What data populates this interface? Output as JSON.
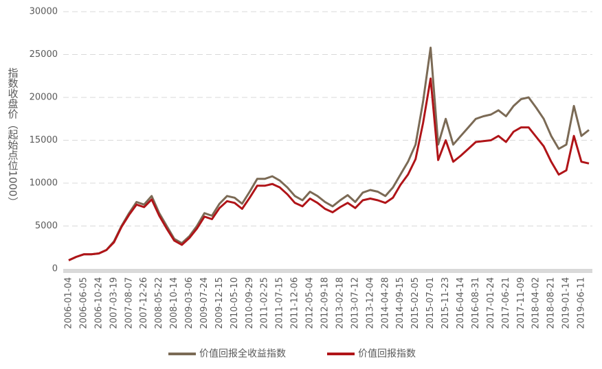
{
  "chart_data": {
    "type": "line",
    "y_label": "指数收盘价（起始点位1000）",
    "categories": [
      "2006-01-04",
      null,
      "2006-06-05",
      null,
      "2006-10-24",
      null,
      "2007-03-19",
      null,
      "2007-08-07",
      null,
      "2007-12-26",
      null,
      "2008-05-22",
      null,
      "2008-10-14",
      null,
      "2009-03-06",
      null,
      "2009-07-24",
      null,
      "2009-12-15",
      null,
      "2010-05-10",
      null,
      "2010-09-29",
      null,
      "2011-02-25",
      null,
      "2011-07-15",
      null,
      "2011-12-06",
      null,
      "2012-05-04",
      null,
      "2012-09-18",
      null,
      "2013-02-18",
      null,
      "2013-07-12",
      null,
      "2013-12-04",
      null,
      "2014-04-28",
      null,
      "2014-09-15",
      null,
      "2015-02-05",
      null,
      "2015-07-01",
      null,
      "2015-11-23",
      null,
      "2016-04-14",
      null,
      "2016-08-31",
      null,
      "2017-01-24",
      null,
      "2017-06-21",
      null,
      "2017-11-09",
      null,
      "2018-04-02",
      null,
      "2018-08-21",
      null,
      "2019-01-14",
      null,
      "2019-06-11",
      null
    ],
    "series": [
      {
        "name": "价值回报全收益指数",
        "color": "#7b6a55",
        "values": [
          1000,
          1400,
          1700,
          1700,
          1800,
          2200,
          3200,
          5000,
          6500,
          7800,
          7500,
          8500,
          6500,
          5000,
          3500,
          3000,
          3800,
          5000,
          6500,
          6200,
          7600,
          8500,
          8300,
          7600,
          9000,
          10500,
          10500,
          10800,
          10300,
          9500,
          8500,
          8000,
          9000,
          8500,
          7800,
          7300,
          8000,
          8600,
          7800,
          8900,
          9200,
          9000,
          8500,
          9500,
          11000,
          12500,
          14500,
          19500,
          25800,
          14500,
          17500,
          14500,
          15500,
          16500,
          17500,
          17800,
          18000,
          18500,
          17800,
          19000,
          19800,
          20000,
          18800,
          17500,
          15500,
          14000,
          14500,
          19000,
          15500,
          16200
        ]
      },
      {
        "name": "价值回报指数",
        "color": "#b01418",
        "values": [
          1000,
          1400,
          1700,
          1700,
          1800,
          2200,
          3100,
          4900,
          6300,
          7500,
          7200,
          8100,
          6200,
          4700,
          3300,
          2800,
          3600,
          4700,
          6100,
          5800,
          7100,
          7900,
          7700,
          7000,
          8300,
          9700,
          9700,
          9900,
          9500,
          8700,
          7700,
          7300,
          8200,
          7700,
          7000,
          6600,
          7200,
          7700,
          7100,
          8000,
          8200,
          8000,
          7700,
          8300,
          9800,
          11000,
          12800,
          17000,
          22200,
          12700,
          15000,
          12500,
          13200,
          14000,
          14800,
          14900,
          15000,
          15500,
          14800,
          16000,
          16500,
          16500,
          15400,
          14300,
          12500,
          11000,
          11500,
          15500,
          12500,
          12300
        ]
      }
    ],
    "ylim": [
      0,
      30000
    ],
    "yticks": [
      0,
      5000,
      10000,
      15000,
      20000,
      25000,
      30000
    ],
    "grid": true
  }
}
